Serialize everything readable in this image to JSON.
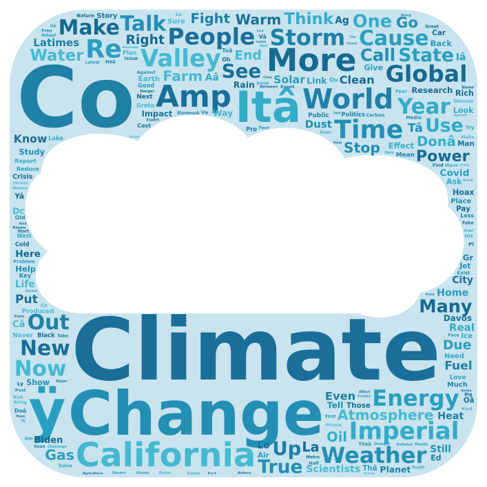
{
  "colors": {
    "outer_shape": "#c9e4ef",
    "inner_cloud": "#ffffff",
    "palette": [
      "#1a6f9a",
      "#1f80a8",
      "#238fb4",
      "#2a9ec0",
      "#34acc9",
      "#45b9d2",
      "#166a92"
    ]
  },
  "words": [
    {
      "text": "Climate",
      "weight": 100
    },
    {
      "text": "Co",
      "weight": 97
    },
    {
      "text": "Change",
      "weight": 72
    },
    {
      "text": "ÿ",
      "weight": 68
    },
    {
      "text": "Itâ",
      "weight": 52
    },
    {
      "text": "California",
      "weight": 40
    },
    {
      "text": "More",
      "weight": 38
    },
    {
      "text": "Amp",
      "weight": 36
    },
    {
      "text": "World",
      "weight": 33
    },
    {
      "text": "Time",
      "weight": 30
    },
    {
      "text": "Imperial",
      "weight": 28
    },
    {
      "text": "Valley",
      "weight": 28
    },
    {
      "text": "Global",
      "weight": 27
    },
    {
      "text": "People",
      "weight": 27
    },
    {
      "text": "Storm",
      "weight": 26
    },
    {
      "text": "Weather",
      "weight": 26
    },
    {
      "text": "Energy",
      "weight": 26
    },
    {
      "text": "Year",
      "weight": 25
    },
    {
      "text": "Now",
      "weight": 25
    },
    {
      "text": "Make",
      "weight": 24
    },
    {
      "text": "New",
      "weight": 24
    },
    {
      "text": "Out",
      "weight": 24
    },
    {
      "text": "Talk",
      "weight": 24
    },
    {
      "text": "Cause",
      "weight": 24
    },
    {
      "text": "Think",
      "weight": 23
    },
    {
      "text": "Water",
      "weight": 23
    },
    {
      "text": "Power",
      "weight": 22
    },
    {
      "text": "Atmosphere",
      "weight": 20
    },
    {
      "text": "See",
      "weight": 22
    },
    {
      "text": "Up",
      "weight": 22
    },
    {
      "text": "True",
      "weight": 21
    },
    {
      "text": "Many",
      "weight": 20
    },
    {
      "text": "State",
      "weight": 21
    },
    {
      "text": "Use",
      "weight": 21
    },
    {
      "text": "Warm",
      "weight": 20
    },
    {
      "text": "End",
      "weight": 18
    },
    {
      "text": "Even",
      "weight": 20
    },
    {
      "text": "Stop",
      "weight": 20
    },
    {
      "text": "Gas",
      "weight": 20
    },
    {
      "text": "One",
      "weight": 20
    },
    {
      "text": "Farm",
      "weight": 20
    },
    {
      "text": "Clean",
      "weight": 20
    },
    {
      "text": "Know",
      "weight": 19
    },
    {
      "text": "Fight",
      "weight": 19
    },
    {
      "text": "Call",
      "weight": 19
    },
    {
      "text": "Right",
      "weight": 18
    },
    {
      "text": "Davos",
      "weight": 18
    },
    {
      "text": "Solar",
      "weight": 19
    },
    {
      "text": "Donâ",
      "weight": 19
    },
    {
      "text": "Latimes",
      "weight": 18
    },
    {
      "text": "Scientists",
      "weight": 17
    },
    {
      "text": "Research",
      "weight": 17
    },
    {
      "text": "Impact",
      "weight": 17
    },
    {
      "text": "Dust",
      "weight": 18
    },
    {
      "text": "Due",
      "weight": 18
    },
    {
      "text": "Real",
      "weight": 18
    },
    {
      "text": "Heat",
      "weight": 17
    },
    {
      "text": "Study",
      "weight": 17
    },
    {
      "text": "Home",
      "weight": 17
    },
    {
      "text": "Produced",
      "weight": 16
    },
    {
      "text": "Effect",
      "weight": 17
    },
    {
      "text": "Here",
      "weight": 16
    },
    {
      "text": "Put",
      "weight": 16
    },
    {
      "text": "Fuel",
      "weight": 16
    },
    {
      "text": "Report",
      "weight": 15
    },
    {
      "text": "Go",
      "weight": 16
    },
    {
      "text": "Earth",
      "weight": 15
    },
    {
      "text": "Biden",
      "weight": 15
    },
    {
      "text": "Planet",
      "weight": 14
    },
    {
      "text": "Place",
      "weight": 14
    },
    {
      "text": "Those",
      "weight": 15
    },
    {
      "text": "Covid",
      "weight": 16
    },
    {
      "text": "Reduce",
      "weight": 14
    },
    {
      "text": "Oil",
      "weight": 14
    },
    {
      "text": "Way",
      "weight": 14
    },
    {
      "text": "Crisis",
      "weight": 13
    },
    {
      "text": "Rain",
      "weight": 14
    },
    {
      "text": "Story",
      "weight": 14
    },
    {
      "text": "Elonmusk",
      "weight": 13
    },
    {
      "text": "Much",
      "weight": 14
    },
    {
      "text": "Help",
      "weight": 13
    },
    {
      "text": "Tell",
      "weight": 14
    },
    {
      "text": "Back",
      "weight": 13
    },
    {
      "text": "West",
      "weight": 13
    },
    {
      "text": "Life",
      "weight": 12
    },
    {
      "text": "Rich",
      "weight": 12
    },
    {
      "text": "Greta",
      "weight": 11
    },
    {
      "text": "Link",
      "weight": 14
    },
    {
      "text": "Need",
      "weight": 14
    },
    {
      "text": "City",
      "weight": 12
    },
    {
      "text": "Sure",
      "weight": 14
    },
    {
      "text": "Public",
      "weight": 12
    },
    {
      "text": "Show",
      "weight": 12
    },
    {
      "text": "Give",
      "weight": 12
    },
    {
      "text": "Ask",
      "weight": 12
    },
    {
      "text": "Black",
      "weight": 11
    },
    {
      "text": "Cold",
      "weight": 11
    },
    {
      "text": "Private",
      "weight": 12
    },
    {
      "text": "Next",
      "weight": 12
    },
    {
      "text": "Politics",
      "weight": 11
    },
    {
      "text": "Media",
      "weight": 11
    },
    {
      "text": "Polluter",
      "weight": 11
    },
    {
      "text": "Hoax",
      "weight": 12
    },
    {
      "text": "Mean",
      "weight": 12
    },
    {
      "text": "Lake",
      "weight": 11
    },
    {
      "text": "Discuss",
      "weight": 11
    },
    {
      "text": "Concerned",
      "weight": 9
    },
    {
      "text": "Nature",
      "weight": 11
    },
    {
      "text": "Still",
      "weight": 12
    },
    {
      "text": "Love",
      "weight": 12
    },
    {
      "text": "Look",
      "weight": 12
    },
    {
      "text": "Series",
      "weight": 10
    },
    {
      "text": "Between",
      "weight": 11
    },
    {
      "text": "Extreme",
      "weight": 9
    },
    {
      "text": "Hidden",
      "weight": 9
    },
    {
      "text": "Ukraine",
      "weight": 10
    },
    {
      "text": "Issue",
      "weight": 11
    },
    {
      "text": "Never",
      "weight": 12
    },
    {
      "text": "Carbon",
      "weight": 11
    },
    {
      "text": "Industry",
      "weight": 10
    },
    {
      "text": "Problem",
      "weight": 11
    },
    {
      "text": "Solve",
      "weight": 11
    },
    {
      "text": "Guardian",
      "weight": 10
    },
    {
      "text": "Believe",
      "weight": 11
    },
    {
      "text": "Podcast",
      "weight": 10
    },
    {
      "text": "Pay",
      "weight": 11
    },
    {
      "text": "Man",
      "weight": 11
    },
    {
      "text": "Pro",
      "weight": 11
    },
    {
      "text": "Old",
      "weight": 10
    },
    {
      "text": "Drought",
      "weight": 10
    },
    {
      "text": "Secure",
      "weight": 9
    },
    {
      "text": "Foxnews",
      "weight": 9
    },
    {
      "text": "Jet",
      "weight": 11
    },
    {
      "text": "Wave",
      "weight": 10
    },
    {
      "text": "Better",
      "weight": 10
    },
    {
      "text": "Great",
      "weight": 10
    },
    {
      "text": "Cost",
      "weight": 10
    },
    {
      "text": "Less",
      "weight": 10
    },
    {
      "text": "Good",
      "weight": 11
    },
    {
      "text": "Ice",
      "weight": 11
    },
    {
      "text": "Plan",
      "weight": 11
    },
    {
      "text": "Car",
      "weight": 11
    },
    {
      "text": "Women",
      "weight": 10
    },
    {
      "text": "Human",
      "weight": 11
    },
    {
      "text": "Stoves",
      "weight": 10
    },
    {
      "text": "Challenge",
      "weight": 10
    },
    {
      "text": "Major",
      "weight": 11
    },
    {
      "text": "Visits",
      "weight": 10
    },
    {
      "text": "Officials",
      "weight": 9
    },
    {
      "text": "Health",
      "weight": 10
    },
    {
      "text": "Expert",
      "weight": 10
    },
    {
      "text": "Key",
      "weight": 11
    },
    {
      "text": "Affect",
      "weight": 10
    },
    {
      "text": "Against",
      "weight": 10
    },
    {
      "text": "Air",
      "weight": 11
    },
    {
      "text": "Adapt",
      "weight": 10
    },
    {
      "text": "Truth",
      "weight": 10
    },
    {
      "text": "Fear",
      "weight": 11
    },
    {
      "text": "House",
      "weight": 10
    },
    {
      "text": "Enjoy",
      "weight": 9
    },
    {
      "text": "Danger",
      "weight": 10
    },
    {
      "text": "Renew",
      "weight": 10
    },
    {
      "text": "Piece",
      "weight": 10
    },
    {
      "text": "Free",
      "weight": 10
    },
    {
      "text": "Recent",
      "weight": 10
    },
    {
      "text": "Made",
      "weight": 10
    },
    {
      "text": "Metro",
      "weight": 9
    },
    {
      "text": "Soon",
      "weight": 9
    },
    {
      "text": "Bring",
      "weight": 10
    },
    {
      "text": "Blame",
      "weight": 10
    },
    {
      "text": "Event",
      "weight": 10
    },
    {
      "text": "Half",
      "weight": 10
    },
    {
      "text": "Post",
      "weight": 10
    },
    {
      "text": "Panel",
      "weight": 9
    },
    {
      "text": "Latest",
      "weight": 9
    },
    {
      "text": "Thanks",
      "weight": 10
    },
    {
      "text": "Speech",
      "weight": 9
    },
    {
      "text": "Easy",
      "weight": 10
    },
    {
      "text": "Risk",
      "weight": 10
    },
    {
      "text": "Kind",
      "weight": 9
    },
    {
      "text": "Hype",
      "weight": 9
    },
    {
      "text": "Find",
      "weight": 10
    },
    {
      "text": "Fake",
      "weight": 10
    },
    {
      "text": "Take",
      "weight": 10
    },
    {
      "text": "Police",
      "weight": 9
    },
    {
      "text": "Along",
      "weight": 9
    },
    {
      "text": "Face",
      "weight": 10
    },
    {
      "text": "Million",
      "weight": 9
    },
    {
      "text": "Predict",
      "weight": 9
    },
    {
      "text": "Article",
      "weight": 10
    },
    {
      "text": "Important",
      "weight": 9
    },
    {
      "text": "Californians",
      "weight": 9
    },
    {
      "text": "Trillions",
      "weight": 8
    },
    {
      "text": "Agriculture",
      "weight": 9
    },
    {
      "text": "Battery",
      "weight": 9
    },
    {
      "text": "Farmer",
      "weight": 9
    },
    {
      "text": "First",
      "weight": 9
    },
    {
      "text": "Over",
      "weight": 10
    },
    {
      "text": "River",
      "weight": 9
    },
    {
      "text": "Quick",
      "weight": 9
    },
    {
      "text": "Extra",
      "weight": 9
    },
    {
      "text": "Work",
      "weight": 9
    },
    {
      "text": "Total",
      "weight": 9
    },
    {
      "text": "Print",
      "weight": 9
    },
    {
      "text": "Told",
      "weight": 9
    },
    {
      "text": "Vax",
      "weight": 9
    },
    {
      "text": "Bad",
      "weight": 10
    },
    {
      "text": "Big",
      "weight": 10
    },
    {
      "text": "Try",
      "weight": 9
    },
    {
      "text": "Hit",
      "weight": 9
    },
    {
      "text": "Rola",
      "weight": 8
    },
    {
      "text": "Last",
      "weight": 8
    },
    {
      "text": "Exist",
      "weight": 8
    },
    {
      "text": "Funny",
      "weight": 8
    },
    {
      "text": "Despite",
      "weight": 8
    },
    {
      "text": "Case",
      "weight": 9
    },
    {
      "text": "Scores",
      "weight": 8
    },
    {
      "text": "Start",
      "weight": 9
    },
    {
      "text": "Learn",
      "weight": 8
    },
    {
      "text": "Potential",
      "weight": 8
    },
    {
      "text": "Bottle",
      "weight": 8
    },
    {
      "text": "During",
      "weight": 9
    },
    {
      "text": "Tesla",
      "weight": 8
    },
    {
      "text": "Toward",
      "weight": 8
    },
    {
      "text": "Environment",
      "weight": 8
    },
    {
      "text": "Supply",
      "weight": 8
    },
    {
      "text": "Build",
      "weight": 8
    },
    {
      "text": "Twitter",
      "weight": 8
    },
    {
      "text": "Save",
      "weight": 8
    },
    {
      "text": "Adding",
      "weight": 8
    },
    {
      "text": "Ocean",
      "weight": 8
    },
    {
      "text": "Sammy",
      "weight": 8
    },
    {
      "text": "Drink",
      "weight": 8
    },
    {
      "text": "Summer",
      "weight": 8
    },
    {
      "text": "Increase",
      "weight": 8
    },
    {
      "text": "Price",
      "weight": 8
    },
    {
      "text": "Hiding",
      "weight": 8
    },
    {
      "text": "Emerging",
      "weight": 8
    },
    {
      "text": "Dead",
      "weight": 8
    },
    {
      "text": "Scum",
      "weight": 8
    },
    {
      "text": "Caused",
      "weight": 8
    },
    {
      "text": "Rent",
      "weight": 9
    },
    {
      "text": "Lies",
      "weight": 8
    },
    {
      "text": "Residents",
      "weight": 8
    },
    {
      "text": "Poor",
      "weight": 9
    },
    {
      "text": "Gets",
      "weight": 8
    },
    {
      "text": "Science",
      "weight": 8
    },
    {
      "text": "Angol",
      "weight": 8
    },
    {
      "text": "Activist",
      "weight": 8
    },
    {
      "text": "Green",
      "weight": 9
    },
    {
      "text": "Entire",
      "weight": 8
    },
    {
      "text": "Level",
      "weight": 8
    },
    {
      "text": "Happen",
      "weight": 8
    },
    {
      "text": "Same",
      "weight": 8
    },
    {
      "text": "Economic",
      "weight": 8
    },
    {
      "text": "Disaster",
      "weight": 8
    },
    {
      "text": "Growers",
      "weight": 8
    },
    {
      "text": "Really",
      "weight": 8
    },
    {
      "text": "Brown",
      "weight": 8
    },
    {
      "text": "Always",
      "weight": 8
    },
    {
      "text": "Live",
      "weight": 8
    },
    {
      "text": "Ucla",
      "weight": 8
    },
    {
      "text": "Ag",
      "weight": 12
    },
    {
      "text": "Lo",
      "weight": 12
    },
    {
      "text": "La",
      "weight": 14
    },
    {
      "text": "Re",
      "weight": 30
    },
    {
      "text": "Ed",
      "weight": 12
    },
    {
      "text": "Tâ",
      "weight": 12
    },
    {
      "text": "Iâ",
      "weight": 12
    },
    {
      "text": "Aâ",
      "weight": 12
    },
    {
      "text": "Câ",
      "weight": 11
    },
    {
      "text": "Yâ",
      "weight": 11
    },
    {
      "text": "Oâ",
      "weight": 11
    },
    {
      "text": "Heâ",
      "weight": 11
    },
    {
      "text": "Theâ",
      "weight": 11
    },
    {
      "text": "Thâ",
      "weight": 11
    },
    {
      "text": "Vâ",
      "weight": 10
    },
    {
      "text": "Doâ",
      "weight": 10
    },
    {
      "text": "Toâ",
      "weight": 10
    },
    {
      "text": "Gm",
      "weight": 10
    },
    {
      "text": "Qu",
      "weight": 10
    },
    {
      "text": "Dc",
      "weight": 10
    },
    {
      "text": "Oh",
      "weight": 10
    },
    {
      "text": "Cs",
      "weight": 9
    },
    {
      "text": "Ly",
      "weight": 9
    },
    {
      "text": "Pl",
      "weight": 9
    },
    {
      "text": "Gr",
      "weight": 9
    },
    {
      "text": "Va",
      "weight": 9
    },
    {
      "text": "Uâ",
      "weight": 9
    },
    {
      "text": "Cu",
      "weight": 9
    },
    {
      "text": "Nj",
      "weight": 9
    }
  ]
}
